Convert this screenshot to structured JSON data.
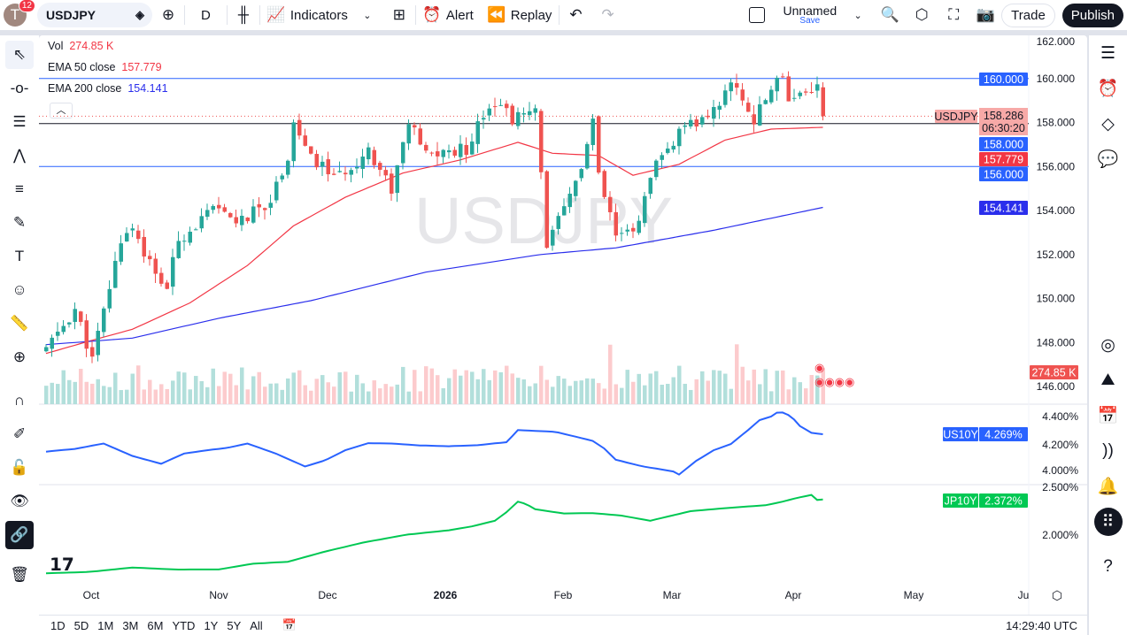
{
  "topbar": {
    "avatar_letter": "T",
    "notifications": "12",
    "symbol": "USDJPY",
    "interval": "D",
    "indicators": "Indicators",
    "alert": "Alert",
    "replay": "Replay",
    "layout_name": "Unnamed",
    "layout_save": "Save",
    "trade": "Trade",
    "publish": "Publish"
  },
  "legend": {
    "vol_label": "Vol",
    "vol_value": "274.85 K",
    "ema50_label": "EMA 50 close",
    "ema50_value": "157.779",
    "ema200_label": "EMA 200 close",
    "ema200_value": "154.141"
  },
  "watermark": "USDJPY",
  "price_axis": {
    "ticks": [
      "162.000",
      "160.000",
      "158.000",
      "156.000",
      "154.000",
      "152.000",
      "150.000",
      "148.000",
      "146.000"
    ],
    "labels": {
      "symbol": "USDJPY",
      "last": "158.286",
      "countdown": "06:30:20",
      "h160": "160.000",
      "h158": "158.000",
      "ema50": "157.779",
      "h156": "156.000",
      "ema200": "154.141",
      "vol": "274.85 K"
    }
  },
  "us10y": {
    "label": "US10Y",
    "value": "4.269%",
    "ticks": [
      "4.400%",
      "4.200%",
      "4.000%"
    ]
  },
  "jp10y": {
    "label": "JP10Y",
    "value": "2.372%",
    "ticks": [
      "2.500%",
      "2.000%"
    ]
  },
  "time_axis": [
    "Oct",
    "Nov",
    "Dec",
    "2026",
    "Feb",
    "Mar",
    "Apr",
    "May",
    "Ju"
  ],
  "ranges": [
    "1D",
    "5D",
    "1M",
    "3M",
    "6M",
    "YTD",
    "1Y",
    "5Y",
    "All"
  ],
  "clock": "14:29:40 UTC",
  "colors": {
    "up": "#26a69a",
    "down": "#ef5350",
    "ema50": "#f23645",
    "ema200": "#2a2eec",
    "hline": "#2962ff",
    "us10y": "#2962ff",
    "jp10y": "#00c853"
  },
  "chart_data": {
    "type": "candlestick",
    "bars": 136,
    "price_range": [
      146,
      162
    ],
    "horizontal_lines": [
      160,
      158,
      156
    ],
    "close_keypoints": [
      [
        0,
        147.7
      ],
      [
        5,
        149.5
      ],
      [
        8,
        147.2
      ],
      [
        11,
        150.5
      ],
      [
        13,
        152.7
      ],
      [
        15,
        153.3
      ],
      [
        19,
        151
      ],
      [
        21,
        150.5
      ],
      [
        23,
        152.7
      ],
      [
        29,
        154
      ],
      [
        34,
        153.5
      ],
      [
        39,
        154.5
      ],
      [
        42,
        156.5
      ],
      [
        43,
        158
      ],
      [
        46,
        156.3
      ],
      [
        51,
        155.5
      ],
      [
        56,
        156.8
      ],
      [
        60,
        155
      ],
      [
        63,
        158
      ],
      [
        66,
        156.5
      ],
      [
        73,
        156.8
      ],
      [
        76,
        158.5
      ],
      [
        78,
        159
      ],
      [
        81,
        158.2
      ],
      [
        85,
        158.4
      ],
      [
        86,
        156
      ],
      [
        87,
        152.4
      ],
      [
        90,
        154
      ],
      [
        93,
        156
      ],
      [
        95,
        158
      ],
      [
        96,
        155.5
      ],
      [
        99,
        152.8
      ],
      [
        102,
        153
      ],
      [
        104,
        154.5
      ],
      [
        106,
        156
      ],
      [
        110,
        157.5
      ],
      [
        113,
        158
      ],
      [
        116,
        158.5
      ],
      [
        118,
        159.5
      ],
      [
        120,
        159.7
      ],
      [
        123,
        158
      ],
      [
        126,
        159.6
      ],
      [
        128,
        160.3
      ],
      [
        129,
        159.1
      ],
      [
        133,
        159.6
      ],
      [
        134,
        159.6
      ],
      [
        135,
        158.286
      ]
    ],
    "ema50_keypoints": [
      [
        0,
        147.5
      ],
      [
        8,
        148.1
      ],
      [
        15,
        148.6
      ],
      [
        25,
        149.8
      ],
      [
        35,
        151.5
      ],
      [
        43,
        153.3
      ],
      [
        52,
        154.6
      ],
      [
        62,
        155.7
      ],
      [
        72,
        156.3
      ],
      [
        82,
        157.1
      ],
      [
        88,
        156.6
      ],
      [
        96,
        156.5
      ],
      [
        102,
        155.6
      ],
      [
        110,
        156.1
      ],
      [
        118,
        157.2
      ],
      [
        126,
        157.7
      ],
      [
        135,
        157.779
      ]
    ],
    "ema200_keypoints": [
      [
        0,
        147.9
      ],
      [
        15,
        148.2
      ],
      [
        30,
        149.1
      ],
      [
        46,
        149.9
      ],
      [
        66,
        151.2
      ],
      [
        86,
        152.0
      ],
      [
        99,
        152.3
      ],
      [
        116,
        153.1
      ],
      [
        135,
        154.141
      ]
    ],
    "us10y_keypoints": [
      [
        0,
        4.14
      ],
      [
        10,
        4.2
      ],
      [
        20,
        4.05
      ],
      [
        28,
        4.15
      ],
      [
        35,
        4.2
      ],
      [
        45,
        4.03
      ],
      [
        52,
        4.15
      ],
      [
        60,
        4.2
      ],
      [
        70,
        4.18
      ],
      [
        80,
        4.21
      ],
      [
        82,
        4.3
      ],
      [
        95,
        4.22
      ],
      [
        99,
        4.08
      ],
      [
        108,
        4.0
      ],
      [
        110,
        3.97
      ],
      [
        116,
        4.15
      ],
      [
        122,
        4.3
      ],
      [
        126,
        4.4
      ],
      [
        128,
        4.43
      ],
      [
        131,
        4.33
      ],
      [
        135,
        4.269
      ]
    ],
    "jp10y_keypoints": [
      [
        0,
        1.6
      ],
      [
        15,
        1.66
      ],
      [
        30,
        1.64
      ],
      [
        42,
        1.72
      ],
      [
        55,
        1.92
      ],
      [
        70,
        2.05
      ],
      [
        78,
        2.15
      ],
      [
        82,
        2.35
      ],
      [
        85,
        2.27
      ],
      [
        95,
        2.23
      ],
      [
        105,
        2.15
      ],
      [
        112,
        2.25
      ],
      [
        122,
        2.3
      ],
      [
        128,
        2.35
      ],
      [
        133,
        2.42
      ],
      [
        135,
        2.372
      ]
    ]
  }
}
